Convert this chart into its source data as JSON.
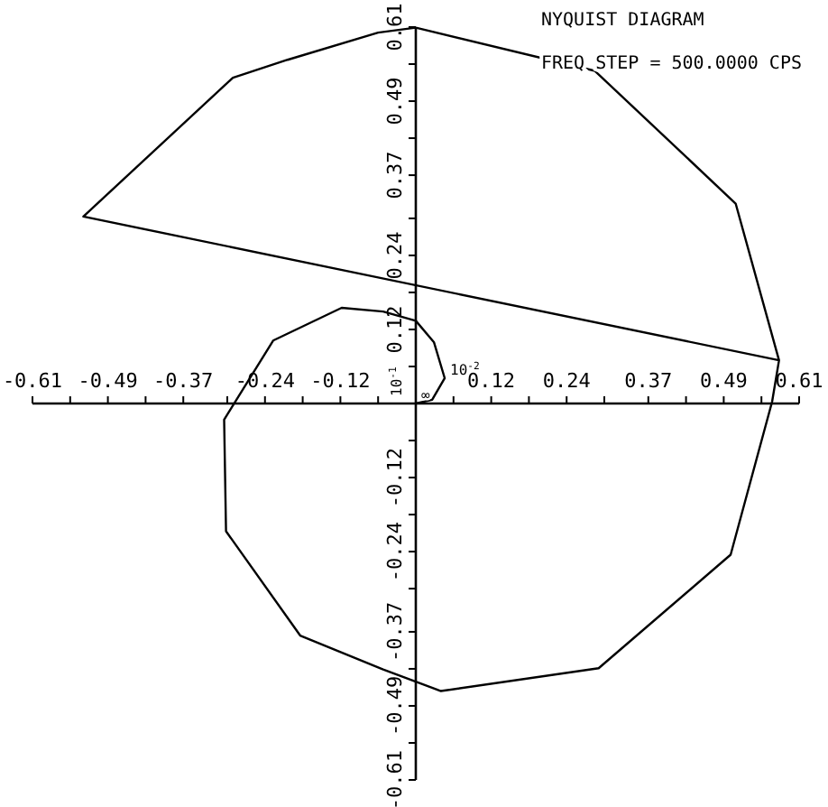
{
  "chart_data": {
    "type": "line",
    "title": "NYQUIST DIAGRAM",
    "subtitle": "FREQ STEP = 500.0000 CPS",
    "x": [
      0,
      0.026,
      0.046,
      0.029,
      0,
      -0.052,
      -0.118,
      -0.227,
      -0.305,
      -0.302,
      -0.184,
      -0.052,
      0.04,
      0.291,
      0.501,
      0.567,
      0.578,
      0.509,
      0.285,
      0,
      -0.06,
      -0.204,
      -0.291,
      -0.529,
      0.578
    ],
    "series": [
      {
        "color": "#000000",
        "values": [
          0,
          0.006,
          0.041,
          0.099,
          0.134,
          0.149,
          0.155,
          0.102,
          -0.026,
          -0.207,
          -0.376,
          -0.431,
          -0.466,
          -0.429,
          -0.245,
          0.003,
          0.07,
          0.324,
          0.539,
          0.609,
          0.601,
          0.557,
          0.528,
          0.303,
          0.07
        ]
      }
    ],
    "xlim": [
      -0.61,
      0.61
    ],
    "ylim": [
      -0.61,
      0.61
    ],
    "xticks": [
      -0.61,
      {
        "value": -0.55,
        "label": null
      },
      -0.49,
      {
        "value": -0.43,
        "label": null
      },
      -0.37,
      {
        "value": -0.3,
        "label": null
      },
      -0.24,
      {
        "value": -0.18,
        "label": null
      },
      -0.12,
      {
        "value": -0.06,
        "label": null
      },
      {
        "value": 0.06,
        "label": null
      },
      0.12,
      {
        "value": 0.18,
        "label": null
      },
      0.24,
      {
        "value": 0.3,
        "label": null
      },
      0.37,
      {
        "value": 0.43,
        "label": null
      },
      0.49,
      {
        "value": 0.55,
        "label": null
      },
      0.61
    ],
    "yticks": [
      -0.61,
      {
        "value": -0.55,
        "label": null
      },
      -0.49,
      {
        "value": -0.43,
        "label": null
      },
      -0.37,
      {
        "value": -0.3,
        "label": null
      },
      -0.24,
      {
        "value": -0.18,
        "label": null
      },
      -0.12,
      {
        "value": -0.06,
        "label": null
      },
      {
        "value": 0.06,
        "label": null
      },
      0.12,
      {
        "value": 0.18,
        "label": null
      },
      0.24,
      {
        "value": 0.3,
        "label": null
      },
      0.37,
      {
        "value": 0.43,
        "label": null
      },
      0.49,
      {
        "value": 0.55,
        "label": null
      },
      0.61
    ],
    "annotations": [
      {
        "text": "10$^{-2}$",
        "x": 0.046,
        "y": 0.041
      },
      "10$^{-1}$",
      {
        "text": "∞",
        "x": 0,
        "y": 0
      }
    ],
    "grid": false,
    "marker": "none",
    "line_style": "solid"
  }
}
